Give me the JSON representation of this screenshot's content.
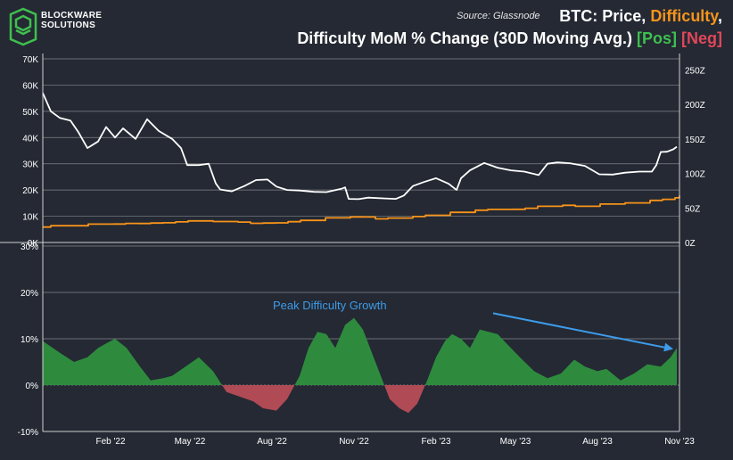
{
  "header": {
    "logo_line1": "BLOCKWARE",
    "logo_line2": "SOLUTIONS",
    "source": "Source: Glassnode",
    "title_part1": "BTC: Price, ",
    "title_part2": "Difficulty",
    "title_part3": ",",
    "title_line2_part1": "Difficulty MoM % Change (30D Moving Avg.) ",
    "title_line2_pos": "[Pos]",
    "title_line2_space": " ",
    "title_line2_neg": "[Neg]"
  },
  "colors": {
    "background": "#242933",
    "price": "#ffffff",
    "difficulty": "#f7931a",
    "positive": "#2e8b3e",
    "negative": "#b04a55",
    "annotation": "#3d9be9"
  },
  "chart_data": [
    {
      "type": "line",
      "title": "BTC: Price, Difficulty",
      "x_range": [
        "2021-12-01",
        "2023-11-15"
      ],
      "x_ticks": [
        "Feb '22",
        "May '22",
        "Aug '22",
        "Nov '22",
        "Feb '23",
        "May '23",
        "Aug '23",
        "Nov '23"
      ],
      "y_left_ticks": [
        "70K",
        "60K",
        "50K",
        "40K",
        "30K",
        "20K",
        "10K",
        "0K"
      ],
      "y_left_range": [
        0,
        70000
      ],
      "y_right_ticks": [
        "250Z",
        "200Z",
        "150Z",
        "100Z",
        "50Z",
        "0Z"
      ],
      "y_right_range": [
        0,
        266
      ],
      "series": [
        {
          "name": "Price",
          "axis": "left",
          "x": [
            "2021-12-01",
            "2021-12-10",
            "2021-12-20",
            "2022-01-01",
            "2022-01-10",
            "2022-01-20",
            "2022-02-01",
            "2022-02-10",
            "2022-02-20",
            "2022-03-01",
            "2022-03-15",
            "2022-03-28",
            "2022-04-10",
            "2022-04-25",
            "2022-05-05",
            "2022-05-12",
            "2022-05-25",
            "2022-06-05",
            "2022-06-13",
            "2022-06-18",
            "2022-07-01",
            "2022-07-15",
            "2022-07-28",
            "2022-08-10",
            "2022-08-20",
            "2022-09-01",
            "2022-09-15",
            "2022-10-01",
            "2022-10-15",
            "2022-11-01",
            "2022-11-05",
            "2022-11-09",
            "2022-11-20",
            "2022-12-01",
            "2022-12-20",
            "2023-01-01",
            "2023-01-10",
            "2023-01-20",
            "2023-02-01",
            "2023-02-15",
            "2023-03-01",
            "2023-03-10",
            "2023-03-15",
            "2023-03-25",
            "2023-04-10",
            "2023-04-25",
            "2023-05-10",
            "2023-05-25",
            "2023-06-10",
            "2023-06-20",
            "2023-07-01",
            "2023-07-15",
            "2023-08-01",
            "2023-08-17",
            "2023-09-01",
            "2023-09-15",
            "2023-10-01",
            "2023-10-15",
            "2023-10-20",
            "2023-10-25",
            "2023-11-01",
            "2023-11-08",
            "2023-11-12"
          ],
          "y": [
            57000,
            50000,
            47500,
            46500,
            42000,
            36000,
            38500,
            44000,
            40000,
            43500,
            39500,
            47000,
            42500,
            39500,
            36000,
            29500,
            29500,
            30000,
            22500,
            20200,
            19500,
            21500,
            23800,
            24000,
            21300,
            20000,
            19800,
            19300,
            19200,
            20500,
            21000,
            16600,
            16500,
            17100,
            16800,
            16600,
            17900,
            21500,
            23000,
            24500,
            22400,
            20000,
            24500,
            27500,
            30300,
            28500,
            27500,
            27000,
            25700,
            30000,
            30500,
            30200,
            29200,
            26000,
            25900,
            26600,
            27000,
            27000,
            29500,
            34500,
            34600,
            35500,
            36500
          ]
        },
        {
          "name": "Difficulty",
          "axis": "right",
          "x": [
            "2021-12-01",
            "2021-12-10",
            "2021-12-24",
            "2022-01-07",
            "2022-01-21",
            "2022-02-04",
            "2022-02-18",
            "2022-03-04",
            "2022-03-18",
            "2022-04-01",
            "2022-04-15",
            "2022-04-29",
            "2022-05-13",
            "2022-05-27",
            "2022-06-10",
            "2022-06-24",
            "2022-07-08",
            "2022-07-22",
            "2022-08-05",
            "2022-08-19",
            "2022-09-02",
            "2022-09-16",
            "2022-09-30",
            "2022-10-14",
            "2022-10-28",
            "2022-11-11",
            "2022-11-25",
            "2022-12-09",
            "2022-12-23",
            "2023-01-06",
            "2023-01-20",
            "2023-02-03",
            "2023-02-17",
            "2023-03-03",
            "2023-03-17",
            "2023-03-31",
            "2023-04-14",
            "2023-04-28",
            "2023-05-12",
            "2023-05-26",
            "2023-06-09",
            "2023-06-23",
            "2023-07-07",
            "2023-07-21",
            "2023-08-04",
            "2023-08-18",
            "2023-09-01",
            "2023-09-15",
            "2023-09-29",
            "2023-10-13",
            "2023-10-27",
            "2023-11-10",
            "2023-11-15"
          ],
          "y": [
            22.3,
            24.3,
            24.3,
            24.3,
            26.6,
            26.6,
            26.7,
            27.6,
            27.5,
            28.2,
            28.6,
            29.8,
            31.3,
            31.3,
            30.3,
            30.3,
            29.6,
            27.7,
            28.2,
            28.4,
            30.1,
            32.0,
            32.0,
            35.6,
            35.6,
            37.0,
            36.9,
            34.2,
            35.4,
            35.4,
            37.6,
            39.4,
            39.4,
            43.6,
            43.6,
            46.8,
            47.9,
            47.9,
            48.0,
            49.6,
            52.4,
            52.4,
            53.9,
            52.4,
            52.4,
            55.6,
            55.6,
            57.3,
            57.3,
            61.0,
            62.5,
            64.7,
            67.9
          ]
        }
      ]
    },
    {
      "type": "area",
      "title": "Difficulty MoM % Change (30D Moving Avg.)",
      "y_ticks": [
        "30%",
        "20%",
        "10%",
        "0%",
        "-10%"
      ],
      "y_range": [
        -10,
        30
      ],
      "annotation": "Peak Difficulty Growth",
      "annotation_arrow": {
        "from": [
          "2023-04-20",
          15.5
        ],
        "to": [
          "2023-11-08",
          7.8
        ]
      },
      "series": [
        {
          "name": "Difficulty MoM % Change",
          "x": [
            "2021-12-01",
            "2021-12-20",
            "2022-01-05",
            "2022-01-20",
            "2022-02-01",
            "2022-02-10",
            "2022-02-20",
            "2022-03-05",
            "2022-03-20",
            "2022-04-01",
            "2022-04-15",
            "2022-04-25",
            "2022-05-10",
            "2022-05-25",
            "2022-06-10",
            "2022-06-25",
            "2022-07-10",
            "2022-07-25",
            "2022-08-05",
            "2022-08-20",
            "2022-09-01",
            "2022-09-15",
            "2022-09-25",
            "2022-10-05",
            "2022-10-15",
            "2022-10-25",
            "2022-11-05",
            "2022-11-15",
            "2022-11-25",
            "2022-12-05",
            "2022-12-15",
            "2022-12-25",
            "2023-01-05",
            "2023-01-15",
            "2023-01-25",
            "2023-02-05",
            "2023-02-15",
            "2023-02-25",
            "2023-03-05",
            "2023-03-15",
            "2023-03-25",
            "2023-04-05",
            "2023-04-15",
            "2023-04-25",
            "2023-05-05",
            "2023-05-20",
            "2023-06-05",
            "2023-06-20",
            "2023-07-05",
            "2023-07-20",
            "2023-08-01",
            "2023-08-15",
            "2023-08-25",
            "2023-09-10",
            "2023-09-25",
            "2023-10-10",
            "2023-10-25",
            "2023-11-05",
            "2023-11-12"
          ],
          "y": [
            9.5,
            7.0,
            5.0,
            6.0,
            8.0,
            9.0,
            10.0,
            8.0,
            4.0,
            1.0,
            1.5,
            2.0,
            4.0,
            6.0,
            3.0,
            -1.5,
            -2.5,
            -3.5,
            -5.0,
            -5.5,
            -3.0,
            2.0,
            8.0,
            11.5,
            11.0,
            8.0,
            13.0,
            14.5,
            12.0,
            7.0,
            2.0,
            -3.0,
            -5.0,
            -6.0,
            -4.0,
            1.0,
            6.0,
            9.5,
            11.0,
            10.0,
            8.0,
            12.0,
            11.5,
            11.0,
            9.0,
            6.0,
            3.0,
            1.5,
            2.5,
            5.5,
            4.0,
            3.0,
            3.5,
            1.0,
            2.5,
            4.5,
            4.0,
            6.0,
            8.0
          ]
        }
      ]
    }
  ]
}
